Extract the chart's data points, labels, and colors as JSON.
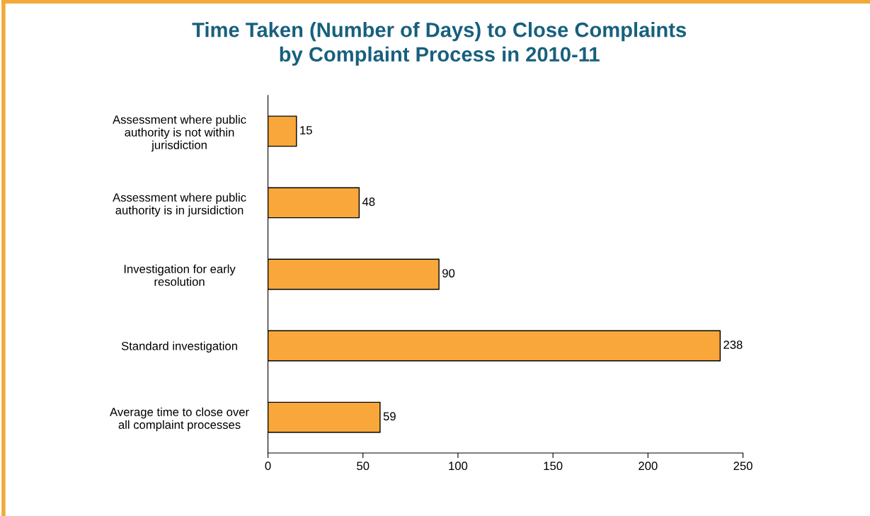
{
  "chart_data": {
    "type": "bar",
    "orientation": "horizontal",
    "title": "Time Taken (Number of Days) to Close Complaints\nby Complaint Process in 2010-11",
    "categories": [
      "Assessment where public\nauthority is not within\njurisdiction",
      "Assessment where public\nauthority is in jursidiction",
      "Investigation for early\nresolution",
      "Standard investigation",
      "Average time to close over\nall complaint processes"
    ],
    "values": [
      15,
      48,
      90,
      238,
      59
    ],
    "color": "#f9a73a",
    "xlim": [
      0,
      250
    ],
    "xticks": [
      0,
      50,
      100,
      150,
      200,
      250
    ],
    "data_labels": true,
    "grid": false,
    "legend": false
  }
}
